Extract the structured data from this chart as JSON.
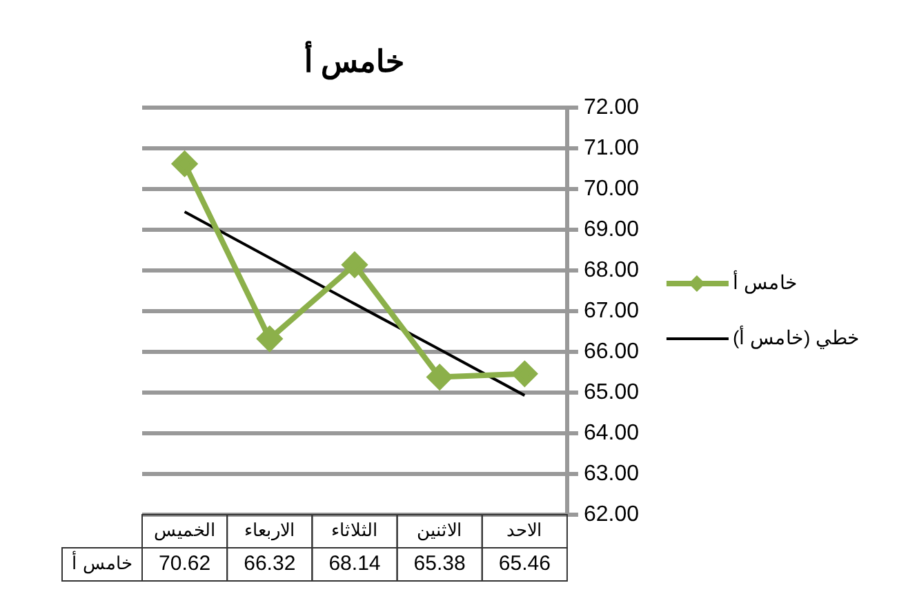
{
  "chart_data": {
    "type": "line",
    "title": "خامس أ",
    "categories": [
      "الخميس",
      "الاربعاء",
      "الثلاثاء",
      "الاثنين",
      "الاحد"
    ],
    "series": [
      {
        "name": "خامس أ",
        "color": "#8cb04a",
        "values": [
          70.62,
          66.32,
          68.14,
          65.38,
          65.46
        ],
        "value_labels": [
          "70.62",
          "66.32",
          "68.14",
          "65.38",
          "65.46"
        ],
        "marker": "diamond"
      },
      {
        "name": "خطي (خامس أ)",
        "color": "#000000",
        "values": [
          69.44,
          68.31,
          67.18,
          66.06,
          64.93
        ],
        "marker": "none"
      }
    ],
    "ylim": [
      62,
      72
    ],
    "yticks": [
      {
        "value": 62,
        "label": "62.00"
      },
      {
        "value": 63,
        "label": "63.00"
      },
      {
        "value": 64,
        "label": "64.00"
      },
      {
        "value": 65,
        "label": "65.00"
      },
      {
        "value": 66,
        "label": "66.00"
      },
      {
        "value": 67,
        "label": "67.00"
      },
      {
        "value": 68,
        "label": "68.00"
      },
      {
        "value": 69,
        "label": "69.00"
      },
      {
        "value": 70,
        "label": "70.00"
      },
      {
        "value": 71,
        "label": "71.00"
      },
      {
        "value": 72,
        "label": "72.00"
      }
    ],
    "grid": "y",
    "legend": "right",
    "line_style": "solid"
  }
}
